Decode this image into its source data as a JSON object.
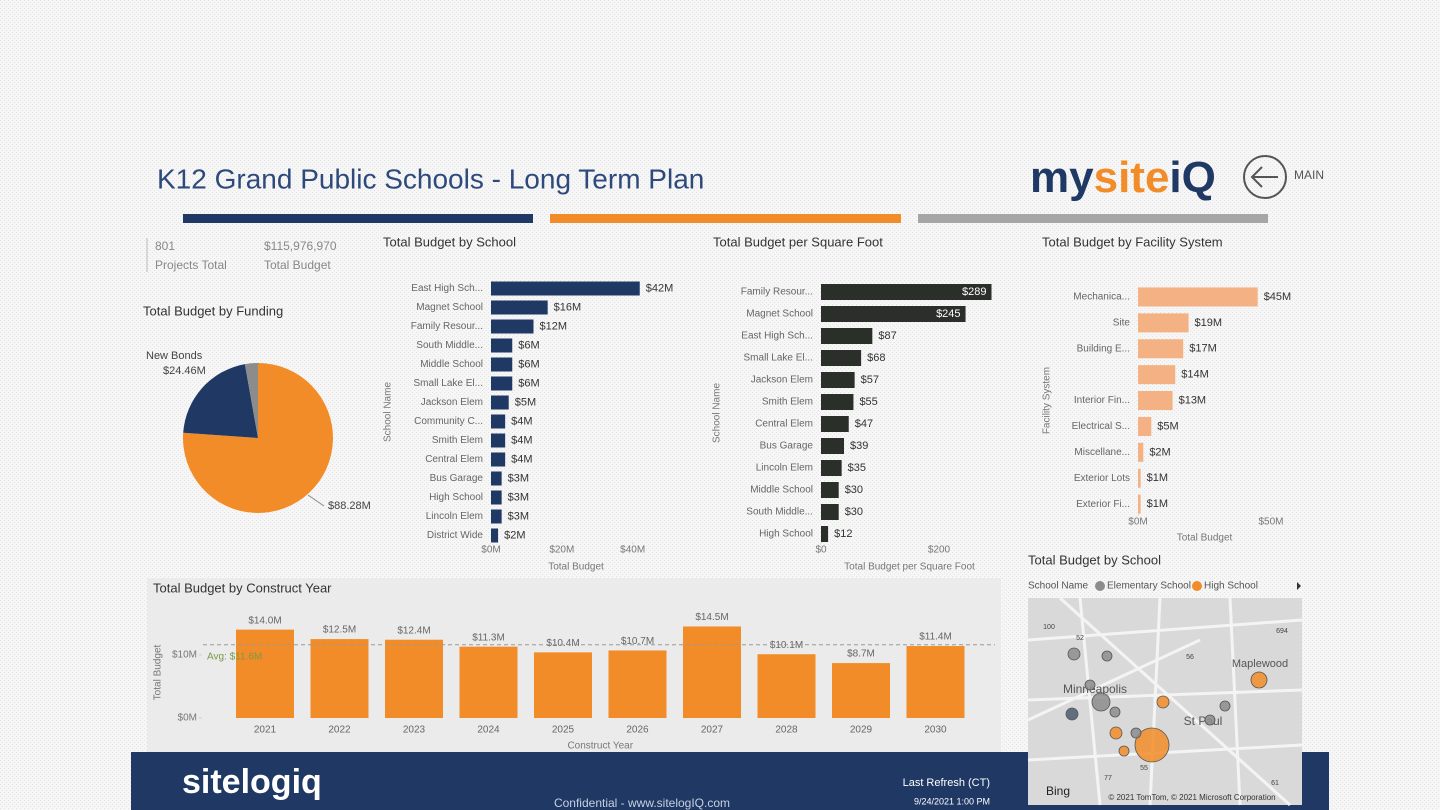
{
  "header": {
    "title": "K12 Grand Public Schools - Long Term Plan",
    "logo": [
      "my",
      "site",
      "iQ"
    ],
    "nav": "MAIN"
  },
  "kpis": [
    {
      "value": "801",
      "label": "Projects Total"
    },
    {
      "value": "$115,976,970",
      "label": "Total Budget"
    }
  ],
  "chart_data": [
    {
      "type": "pie",
      "title": "Total Budget by Funding",
      "categories": [
        null,
        "New Bonds",
        null
      ],
      "values": [
        88.28,
        24.46,
        3.24
      ],
      "value_labels": [
        "$88.28M",
        "$24.46M",
        null
      ],
      "colors": [
        "#f28c28",
        "#1f3864",
        "#8c8c8c"
      ]
    },
    {
      "type": "hbar",
      "title": "Total Budget by School",
      "xlabel": "Total Budget",
      "ylabel": "School Name",
      "categories": [
        "East High Sch...",
        "Magnet School",
        "Family Resour...",
        "South Middle...",
        "Middle School",
        "Small Lake El...",
        "Jackson Elem",
        "Community C...",
        "Smith Elem",
        "Central Elem",
        "Bus Garage",
        "High School",
        "Lincoln Elem",
        "District Wide"
      ],
      "values": [
        42,
        16,
        12,
        6,
        6,
        6,
        5,
        4,
        4,
        4,
        3,
        3,
        3,
        2
      ],
      "value_labels": [
        "$42M",
        "$16M",
        "$12M",
        "$6M",
        "$6M",
        "$6M",
        "$5M",
        "$4M",
        "$4M",
        "$4M",
        "$3M",
        "$3M",
        "$3M",
        "$2M"
      ],
      "color": "#1f3864",
      "xlim": [
        0,
        48
      ],
      "xticks": [
        {
          "value": 0,
          "label": "$0M"
        },
        {
          "value": 20,
          "label": "$20M"
        },
        {
          "value": 40,
          "label": "$40M"
        }
      ]
    },
    {
      "type": "hbar",
      "title": "Total Budget per Square Foot",
      "xlabel": "Total Budget per Square Foot",
      "ylabel": "School Name",
      "categories": [
        "Family Resour...",
        "Magnet School",
        "East High Sch...",
        "Small Lake El...",
        "Jackson Elem",
        "Smith Elem",
        "Central Elem",
        "Bus Garage",
        "Lincoln Elem",
        "Middle School",
        "South Middle...",
        "High School"
      ],
      "values": [
        289,
        245,
        87,
        68,
        57,
        55,
        47,
        39,
        35,
        30,
        30,
        12
      ],
      "value_labels": [
        "$289",
        "$245",
        "$87",
        "$68",
        "$57",
        "$55",
        "$47",
        "$39",
        "$35",
        "$30",
        "$30",
        "$12"
      ],
      "color": "#2a2f2a",
      "xlim": [
        0,
        300
      ],
      "xticks": [
        {
          "value": 0,
          "label": "$0"
        },
        {
          "value": 200,
          "label": "$200"
        }
      ]
    },
    {
      "type": "hbar",
      "title": "Total Budget by Facility System",
      "xlabel": "Total Budget",
      "ylabel": "Facility System",
      "categories": [
        "Mechanica...",
        "Site",
        "Building E...",
        null,
        "Interior Fin...",
        "Electrical S...",
        "Miscellane...",
        "Exterior Lots",
        "Exterior Fi..."
      ],
      "values": [
        45,
        19,
        17,
        14,
        13,
        5,
        2,
        1,
        1
      ],
      "value_labels": [
        "$45M",
        "$19M",
        "$17M",
        "$14M",
        "$13M",
        "$5M",
        "$2M",
        "$1M",
        "$1M"
      ],
      "color": "#f4b183",
      "xlim": [
        0,
        50
      ],
      "xticks": [
        {
          "value": 0,
          "label": "$0M"
        },
        {
          "value": 50,
          "label": "$50M"
        }
      ]
    },
    {
      "type": "bar",
      "title": "Total Budget by Construct Year",
      "xlabel": "Construct Year",
      "ylabel": "Total Budget",
      "categories": [
        "2021",
        "2022",
        "2023",
        "2024",
        "2025",
        "2026",
        "2027",
        "2028",
        "2029",
        "2030"
      ],
      "values": [
        14.0,
        12.5,
        12.4,
        11.3,
        10.4,
        10.7,
        14.5,
        10.1,
        8.7,
        11.4
      ],
      "value_labels": [
        "$14.0M",
        "$12.5M",
        "$12.4M",
        "$11.3M",
        "$10.4M",
        "$10.7M",
        "$14.5M",
        "$10.1M",
        "$8.7M",
        "$11.4M"
      ],
      "color": "#f28c28",
      "ylim": [
        0,
        16
      ],
      "yticks": [
        {
          "value": 0,
          "label": "$0M"
        },
        {
          "value": 10,
          "label": "$10M"
        }
      ],
      "average": {
        "value": 11.6,
        "label": "Avg: $11.6M"
      }
    },
    {
      "type": "map",
      "title": "Total Budget by School",
      "legend_title": "School Name",
      "series": [
        {
          "name": "Elementary School",
          "color": "#8c8c8c"
        },
        {
          "name": "High School",
          "color": "#f28c28"
        }
      ],
      "places": [
        "Minneapolis",
        "St Paul",
        "Maplewood"
      ],
      "road_labels": [
        "100",
        "52",
        "694",
        "56",
        "55",
        "77",
        "61"
      ],
      "provider": "Bing",
      "attribution": "© 2021 TomTom, © 2021 Microsoft Corporation"
    }
  ],
  "footer": {
    "brand": "sitelogiq",
    "confidential": "Confidential - www.sitelogIQ.com",
    "refresh_label": "Last Refresh (CT)",
    "refresh_time": "9/24/2021 1:00 PM"
  }
}
